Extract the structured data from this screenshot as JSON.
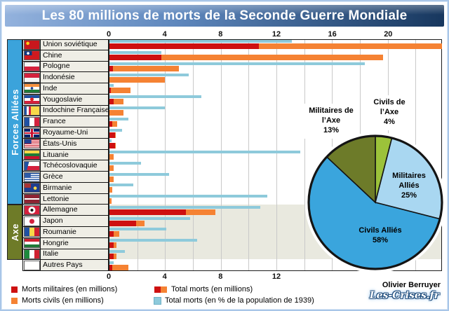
{
  "title": "Les 80 millions de morts de la Seconde Guerre Mondiale",
  "footer": {
    "author": "Olivier Berruyer",
    "site": "Les-Crises.fr"
  },
  "groups": {
    "allies": "Forces Alliées",
    "axe": "Axe"
  },
  "colors": {
    "military": "#ce1010",
    "civilian": "#f58233",
    "total_pct": "#8ecadb",
    "band_allies": "#3ba3db",
    "band_axe": "#6e7b28",
    "axe_zone_bg": "#e9e9df",
    "title_from": "#93b2dd",
    "title_to": "#17375e"
  },
  "legend": [
    {
      "id": "military",
      "label": "Morts militaires (en millions)"
    },
    {
      "id": "civilian",
      "label": "Morts civils (en millions)"
    },
    {
      "id": "total",
      "label": "Total morts (en millions)"
    },
    {
      "id": "percent",
      "label": "Total morts (en % de la population de 1939)"
    }
  ],
  "chart_data": [
    {
      "type": "bar",
      "orientation": "horizontal",
      "x_axis": {
        "max": 23.85,
        "top_ticks": [
          0,
          4,
          8,
          12,
          16,
          20
        ],
        "bottom_ticks": [
          0,
          4,
          8,
          12
        ],
        "gridline_step": 2
      },
      "series_names": [
        "Morts militaires (en millions)",
        "Morts civils (en millions)",
        "Total morts (en % de la population de 1939)"
      ],
      "rows": [
        {
          "country": "Union soviétique",
          "group": "allies",
          "militaires": 10.7,
          "civils": 15.9,
          "total": 26.6,
          "pct_pop_1939": 13.1,
          "flag_css": "radial-gradient(circle at 22% 32%, #fcd116 0 2px, rgba(252,209,22,0) 2.6px), linear-gradient(#c8171d,#c8171d)"
        },
        {
          "country": "Chine",
          "group": "allies",
          "militaires": 3.7,
          "civils": 15.9,
          "total": 19.6,
          "pct_pop_1939": 3.7,
          "flag_css": "radial-gradient(circle at 24% 26%, #ffffff 0 1.6px, rgba(255,255,255,0) 2.1px), linear-gradient(#10357f,#10357f) 0 0/50% 52% no-repeat, linear-gradient(#d0191f,#d0191f)"
        },
        {
          "country": "Pologne",
          "group": "allies",
          "militaires": 0.24,
          "civils": 4.76,
          "total": 5.0,
          "pct_pop_1939": 18.3,
          "flag_css": "linear-gradient(#f5f5f5 50%, #d4213d 50%)"
        },
        {
          "country": "Indonésie",
          "group": "allies",
          "militaires": 0.0,
          "civils": 4.0,
          "total": 4.0,
          "pct_pop_1939": 5.7,
          "flag_css": "linear-gradient(#d4213d 50%, #f5f5f5 50%)"
        },
        {
          "country": "Inde",
          "group": "allies",
          "militaires": 0.09,
          "civils": 1.41,
          "total": 1.5,
          "pct_pop_1939": 0.3,
          "flag_css": "radial-gradient(circle at 50% 50%, #1a3c8c 0 1.6px, rgba(26,60,140,0) 2.1px), linear-gradient(#f6913d 33%, #ffffff 33% 67%, #1e7a38 67%)"
        },
        {
          "country": "Yougoslavie",
          "group": "allies",
          "militaires": 0.3,
          "civils": 0.7,
          "total": 1.0,
          "pct_pop_1939": 6.6,
          "flag_css": "radial-gradient(circle at 50% 48%, #e02020 0 2.2px, rgba(224,32,32,0) 2.8px), linear-gradient(#2051a3 33%, #ffffff 33% 67%, #d4213d 67%)"
        },
        {
          "country": "Indochine Française",
          "group": "allies",
          "militaires": 0.0,
          "civils": 1.0,
          "total": 1.0,
          "pct_pop_1939": 4.0,
          "flag_css": "linear-gradient(90deg, #2051a3 0 14%, #ffffff 14% 28%, #d4213d 28% 42%, #f7d94a 42%)"
        },
        {
          "country": "France",
          "group": "allies",
          "militaires": 0.22,
          "civils": 0.33,
          "total": 0.55,
          "pct_pop_1939": 1.35,
          "flag_css": "linear-gradient(90deg, #2051a3 33%, #ffffff 33% 67%, #d4213d 67%)"
        },
        {
          "country": "Royaume-Uni",
          "group": "allies",
          "militaires": 0.38,
          "civils": 0.07,
          "total": 0.45,
          "pct_pop_1939": 0.9,
          "flag_css": "linear-gradient(0deg, rgba(0,0,0,0) 42%, #c8102e 42% 58%, rgba(0,0,0,0) 58%), linear-gradient(90deg, rgba(0,0,0,0) 44%, #c8102e 44% 56%, rgba(0,0,0,0) 56%), linear-gradient(0deg, rgba(0,0,0,0) 34%, #ffffff 34% 66%, rgba(0,0,0,0) 66%), linear-gradient(90deg, rgba(0,0,0,0) 38%, #ffffff 38% 62%, rgba(0,0,0,0) 62%), linear-gradient(#012169,#012169)"
        },
        {
          "country": "États-Unis",
          "group": "allies",
          "militaires": 0.4,
          "civils": 0.02,
          "total": 0.42,
          "pct_pop_1939": 0.15,
          "flag_css": "linear-gradient(#1e3e8f,#1e3e8f) 0 0/46% 54% no-repeat, repeating-linear-gradient(#cf2030 0 1.4px, #ffffff 1.4px 2.9px)"
        },
        {
          "country": "Lituanie",
          "group": "allies",
          "militaires": 0.0,
          "civils": 0.3,
          "total": 0.3,
          "pct_pop_1939": 13.7,
          "flag_css": "linear-gradient(#f7d94a 33%, #1e7a38 33% 67%, #c8102e 67%)"
        },
        {
          "country": "Tchécoslovaquie",
          "group": "allies",
          "militaires": 0.0,
          "civils": 0.3,
          "total": 0.3,
          "pct_pop_1939": 2.25,
          "flag_css": "linear-gradient(105deg, #2051a3 26%, rgba(32,81,163,0) 27%), linear-gradient(#ffffff 50%, #d4213d 50%)"
        },
        {
          "country": "Grèce",
          "group": "allies",
          "militaires": 0.0,
          "civils": 0.3,
          "total": 0.3,
          "pct_pop_1939": 4.3,
          "flag_css": "linear-gradient(#2d5ba8,#2d5ba8) 0 0/42% 55% no-repeat, repeating-linear-gradient(#2d5ba8 0 1.4px, #ffffff 1.4px 2.9px)"
        },
        {
          "country": "Birmanie",
          "group": "allies",
          "militaires": 0.0,
          "civils": 0.2,
          "total": 0.2,
          "pct_pop_1939": 1.7,
          "flag_css": "radial-gradient(circle at 72% 55%, #f7d94a 0 2px, rgba(247,217,74,0) 2.6px), linear-gradient(#aa3333,#aa3333) 0 0/45% 50% no-repeat, linear-gradient(#1e3e8f,#1e3e8f)"
        },
        {
          "country": "Lettonie",
          "group": "allies",
          "militaires": 0.0,
          "civils": 0.15,
          "total": 0.15,
          "pct_pop_1939": 11.3,
          "flag_css": "linear-gradient(#8e2433 40%, #ffffff 40% 60%, #8e2433 60%)"
        },
        {
          "country": "Allemagne",
          "group": "axe",
          "militaires": 5.5,
          "civils": 2.1,
          "total": 7.6,
          "pct_pop_1939": 10.8,
          "flag_css": "radial-gradient(circle at 50% 50%, #141414 0 2px, #ffffff 2px 4.6px, rgba(255,255,255,0) 5.2px), linear-gradient(#d4213d,#d4213d)"
        },
        {
          "country": "Japon",
          "group": "axe",
          "militaires": 1.9,
          "civils": 0.6,
          "total": 2.5,
          "pct_pop_1939": 5.8,
          "flag_css": "radial-gradient(circle at 50% 50%, #d4213d 0 3.2px, rgba(212,33,61,0) 3.8px), linear-gradient(#ffffff,#ffffff)"
        },
        {
          "country": "Roumanie",
          "group": "axe",
          "militaires": 0.3,
          "civils": 0.4,
          "total": 0.7,
          "pct_pop_1939": 4.1,
          "flag_css": "linear-gradient(90deg, #2051a3 33%, #f7d94a 33% 67%, #cf2030 67%)"
        },
        {
          "country": "Hongrie",
          "group": "axe",
          "militaires": 0.3,
          "civils": 0.2,
          "total": 0.5,
          "pct_pop_1939": 6.3,
          "flag_css": "linear-gradient(#cf2030 33%, #ffffff 33% 67%, #1e7a38 67%)"
        },
        {
          "country": "Italie",
          "group": "axe",
          "militaires": 0.3,
          "civils": 0.2,
          "total": 0.5,
          "pct_pop_1939": 1.1,
          "flag_css": "linear-gradient(90deg, #1e8a3c 33%, #ffffff 33% 67%, #cf2030 67%)"
        },
        {
          "country": "Autres Pays",
          "group": "other",
          "militaires": 0.2,
          "civils": 1.15,
          "total": 1.35,
          "pct_pop_1939": 0.3,
          "flag_css": "linear-gradient(#ffffff,#ffffff)"
        }
      ]
    },
    {
      "type": "pie",
      "start_angle_deg": 0,
      "direction": "clockwise",
      "slices": [
        {
          "label": "Civils de l’Axe",
          "value": 4,
          "value_label": "4%",
          "color": "#9cc23a"
        },
        {
          "label": "Militaires Alliés",
          "value": 25,
          "value_label": "25%",
          "color": "#a9d7f1"
        },
        {
          "label": "Civils Alliés",
          "value": 58,
          "value_label": "58%",
          "color": "#3aa5dd"
        },
        {
          "label": "Militaires de l’Axe",
          "value": 13,
          "value_label": "13%",
          "color": "#6d7b29"
        }
      ]
    }
  ]
}
